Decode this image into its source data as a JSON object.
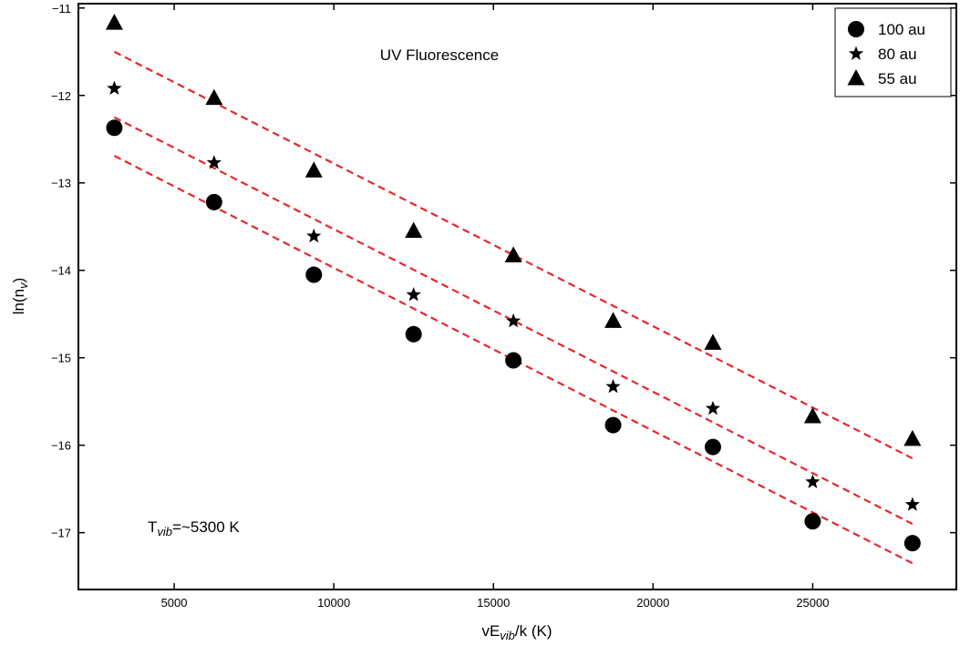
{
  "chart_data": {
    "type": "scatter",
    "annotation_title": "UV Fluorescence",
    "annotation_temp": {
      "prefix": "T",
      "sub": "vib",
      "suffix": "=~5300 K"
    },
    "xlabel": {
      "prefix": "vE",
      "sub": "vib",
      "suffix": "/k (K)"
    },
    "ylabel": {
      "prefix": "ln(n",
      "sub": "v",
      "suffix": ")"
    },
    "xlim": [
      2000,
      29500
    ],
    "ylim": [
      -17.65,
      -10.95
    ],
    "xticks": [
      5000,
      10000,
      15000,
      20000,
      25000
    ],
    "xtick_labels": [
      "5000",
      "10000",
      "15000",
      "20000",
      "25000"
    ],
    "yticks": [
      -11,
      -12,
      -13,
      -14,
      -15,
      -16,
      -17
    ],
    "ytick_labels": [
      "−11",
      "−12",
      "−13",
      "−14",
      "−15",
      "−16",
      "−17"
    ],
    "grid": false,
    "legend_position": "top-right",
    "fit_color": "#e8262b",
    "marker_color": "#000000",
    "series": [
      {
        "name": "100 au",
        "marker": "circle",
        "x": [
          3125,
          6250,
          9375,
          12500,
          15625,
          18750,
          21875,
          25000,
          28125
        ],
        "y": [
          -12.37,
          -13.22,
          -14.05,
          -14.73,
          -15.03,
          -15.77,
          -16.02,
          -16.87,
          -17.12
        ],
        "fit": {
          "x": [
            3125,
            28125
          ],
          "y": [
            -12.69,
            -17.35
          ]
        }
      },
      {
        "name": "80 au",
        "marker": "star",
        "x": [
          3125,
          6250,
          9375,
          12500,
          15625,
          18750,
          21875,
          25000,
          28125
        ],
        "y": [
          -11.92,
          -12.77,
          -13.61,
          -14.28,
          -14.58,
          -15.33,
          -15.58,
          -16.42,
          -16.68
        ],
        "fit": {
          "x": [
            3125,
            28125
          ],
          "y": [
            -12.25,
            -16.9
          ]
        }
      },
      {
        "name": "55 au",
        "marker": "triangle",
        "x": [
          3125,
          6250,
          9375,
          12500,
          15625,
          18750,
          21875,
          25000,
          28125
        ],
        "y": [
          -11.17,
          -12.03,
          -12.86,
          -13.55,
          -13.83,
          -14.58,
          -14.83,
          -15.67,
          -15.93
        ],
        "fit": {
          "x": [
            3125,
            28125
          ],
          "y": [
            -11.5,
            -16.15
          ]
        }
      }
    ]
  }
}
